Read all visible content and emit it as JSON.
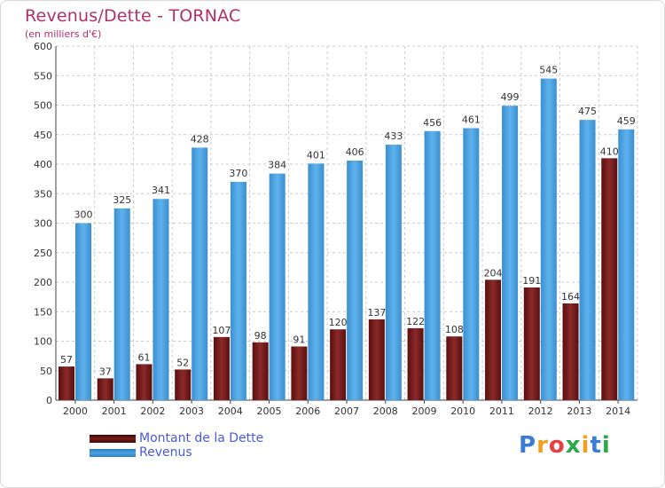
{
  "title": "Revenus/Dette - TORNAC",
  "subtitle": "(en milliers d'€)",
  "colors": {
    "dette": "#7a1a1a",
    "revenus": "#4aa2e0",
    "grid": "#cccccc",
    "title": "#b0306a",
    "legend_text": "#4a5bd6"
  },
  "chart_data": {
    "type": "bar",
    "categories": [
      "2000",
      "2001",
      "2002",
      "2003",
      "2004",
      "2005",
      "2006",
      "2007",
      "2008",
      "2009",
      "2010",
      "2011",
      "2012",
      "2013",
      "2014"
    ],
    "series": [
      {
        "name": "Montant de la Dette",
        "values": [
          57,
          37,
          61,
          52,
          107,
          98,
          91,
          120,
          137,
          122,
          108,
          204,
          191,
          164,
          410
        ]
      },
      {
        "name": "Revenus",
        "values": [
          300,
          325,
          341,
          428,
          370,
          384,
          401,
          406,
          433,
          456,
          461,
          499,
          545,
          475,
          459
        ]
      }
    ],
    "title": "Revenus/Dette - TORNAC",
    "ylabel": "(en milliers d'€)",
    "ylim": [
      0,
      600
    ],
    "yticks": [
      0,
      50,
      100,
      150,
      200,
      250,
      300,
      350,
      400,
      450,
      500,
      550,
      600
    ],
    "grid": true,
    "legend": "bottom-left"
  },
  "legend": {
    "items": [
      {
        "label": "Montant de la Dette"
      },
      {
        "label": "Revenus"
      }
    ]
  },
  "logo": {
    "letters": [
      "P",
      "r",
      "o",
      "x",
      "i",
      "t",
      "i"
    ],
    "colors": [
      "#3a7bd5",
      "#f0a020",
      "#e84040",
      "#2aa84a",
      "#f0a020",
      "#3a7bd5",
      "#2aa84a"
    ]
  }
}
